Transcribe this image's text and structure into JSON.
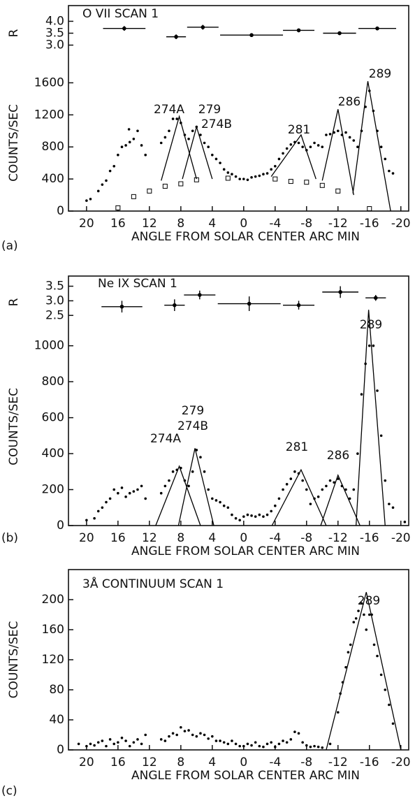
{
  "chart_data": [
    {
      "type": "scatter",
      "title": "O VII SCAN 1",
      "ylabel": "R",
      "xlim": [
        22.3,
        -21
      ],
      "ylim": [
        2.4,
        4.6
      ],
      "yticks": [
        {
          "value": 3,
          "label": "3.0"
        },
        3.5,
        {
          "value": 4,
          "label": "4.0"
        }
      ],
      "series": [
        {
          "marker": "errorbar",
          "color": "#000000",
          "x": [
            15.2,
            8.6,
            5.2,
            -1,
            -7,
            -12.2,
            -17
          ],
          "values": [
            3.7,
            3.35,
            3.75,
            3.42,
            3.62,
            3.5,
            3.7
          ],
          "xerr": [
            2.7,
            1.25,
            2,
            4,
            2,
            2.1,
            2.4
          ],
          "yerr": [
            0.1,
            0.1,
            0.1,
            0.08,
            0.08,
            0.08,
            0.08
          ]
        }
      ]
    },
    {
      "type": "scatter",
      "ylabel": "COUNTS/SEC",
      "xlabel": "ANGLE FROM SOLAR CENTER ARC MIN",
      "panel_label": "(a)",
      "xlim": [
        22.3,
        -21
      ],
      "ylim": [
        0,
        1700
      ],
      "yticks": [
        0,
        400,
        800,
        1200,
        1600
      ],
      "xticks": [
        20,
        16,
        12,
        8,
        4,
        0,
        -4,
        -8,
        -12,
        -16,
        -20
      ],
      "annotations": [
        "274A",
        "279",
        "274B",
        "281",
        "286",
        "289"
      ],
      "series": [
        {
          "marker": "dot",
          "color": "#000000",
          "x": [
            20,
            19.5,
            18.5,
            18,
            17.5,
            17,
            16.5,
            16,
            15.5,
            15,
            14.6,
            14.5,
            14,
            13.5,
            13,
            12.5,
            10.5,
            10,
            9.5,
            9,
            8.5,
            8,
            7.5,
            7,
            6.5,
            6,
            5.5,
            5,
            4.5,
            4,
            3.5,
            3,
            2.5,
            2,
            1.5,
            1,
            0.5,
            0,
            -0.5,
            -1,
            -1.5,
            -2,
            -2.5,
            -3,
            -3.5,
            -4,
            -4.5,
            -5,
            -5.5,
            -6,
            -6.5,
            -7,
            -7.5,
            -8,
            -8.5,
            -9,
            -9.5,
            -10,
            -10.5,
            -11,
            -11.5,
            -12,
            -12.5,
            -13,
            -13.5,
            -14,
            -14.5,
            -15,
            -15.5,
            -16,
            -16.5,
            -17,
            -17.5,
            -18,
            -18.5,
            -19
          ],
          "values": [
            130,
            150,
            250,
            330,
            380,
            500,
            560,
            700,
            800,
            820,
            1020,
            860,
            900,
            1000,
            820,
            700,
            850,
            920,
            1000,
            1150,
            1150,
            1100,
            950,
            900,
            1000,
            1050,
            950,
            850,
            800,
            700,
            650,
            600,
            520,
            480,
            460,
            430,
            400,
            400,
            390,
            420,
            430,
            440,
            460,
            470,
            520,
            560,
            650,
            720,
            780,
            830,
            860,
            850,
            800,
            760,
            800,
            850,
            820,
            800,
            950,
            960,
            980,
            1000,
            950,
            980,
            920,
            880,
            800,
            1000,
            1300,
            1500,
            1250,
            1000,
            800,
            650,
            500,
            470
          ]
        },
        {
          "marker": "square",
          "color": "#000000",
          "x": [
            16,
            14,
            12,
            10,
            8,
            6,
            2,
            -4,
            -6,
            -8,
            -10,
            -12,
            -16
          ],
          "values": [
            40,
            180,
            250,
            310,
            340,
            390,
            410,
            400,
            370,
            360,
            320,
            250,
            30
          ]
        },
        {
          "marker": "line",
          "color": "#000000",
          "x": [
            10.5,
            8.2,
            6,
            null,
            7.8,
            6,
            4,
            null,
            -3.5,
            -7.3,
            -9.2,
            null,
            -10,
            -12,
            -14,
            null,
            -13.9,
            -15.8,
            -18.7
          ],
          "values": [
            380,
            1180,
            400,
            null,
            400,
            1050,
            400,
            null,
            430,
            950,
            400,
            null,
            380,
            1270,
            200,
            null,
            220,
            1620,
            0
          ]
        }
      ]
    },
    {
      "type": "scatter",
      "title": "Ne IX SCAN 1",
      "ylabel": "R",
      "xlim": [
        22.3,
        -21
      ],
      "ylim": [
        2.1,
        3.8
      ],
      "yticks": [
        2.5,
        {
          "value": 3,
          "label": "3.0"
        },
        3.5
      ],
      "series": [
        {
          "marker": "errorbar",
          "color": "#000000",
          "x": [
            15.5,
            8.8,
            5.6,
            -0.7,
            -7,
            -12.3,
            -16.8
          ],
          "values": [
            2.8,
            2.85,
            3.2,
            2.9,
            2.85,
            3.3,
            3.1
          ],
          "xerr": [
            2.6,
            1.3,
            2,
            4,
            2,
            2.3,
            1.3
          ],
          "yerr": [
            0.2,
            0.2,
            0.15,
            0.25,
            0.15,
            0.2,
            0.1
          ]
        }
      ]
    },
    {
      "type": "scatter",
      "ylabel": "COUNTS/SEC",
      "xlabel": "ANGLE FROM SOLAR CENTER ARC MIN",
      "panel_label": "(b)",
      "xlim": [
        22.3,
        -21
      ],
      "ylim": [
        0,
        1100
      ],
      "yticks": [
        0,
        200,
        400,
        600,
        800,
        1000
      ],
      "xticks": [
        20,
        16,
        12,
        8,
        4,
        0,
        -4,
        -8,
        -12,
        -16,
        -20
      ],
      "annotations": [
        "274A",
        "279",
        "274B",
        "281",
        "286",
        "289"
      ],
      "series": [
        {
          "marker": "dot",
          "color": "#000000",
          "x": [
            20,
            19,
            18.5,
            18,
            17.5,
            17,
            16.5,
            16,
            15.5,
            15,
            14.5,
            14,
            13.5,
            13,
            12.5,
            10.5,
            10,
            9.5,
            9,
            8.5,
            8,
            7.5,
            7,
            6.5,
            6,
            5.5,
            5,
            4.5,
            4,
            3.5,
            3,
            2.5,
            2,
            1.5,
            1,
            0.5,
            0,
            -0.5,
            -1,
            -1.5,
            -2,
            -2.5,
            -3,
            -3.5,
            -4,
            -4.5,
            -5,
            -5.5,
            -6,
            -6.5,
            -7,
            -7.5,
            -8,
            -8.5,
            -9,
            -9.5,
            -10,
            -10.5,
            -11,
            -11.5,
            -12,
            -12.5,
            -13,
            -13.5,
            -14,
            -14.5,
            -15,
            -15.5,
            -16,
            -16.5,
            -17,
            -17.5,
            -18,
            -18.5,
            -19,
            -20.5
          ],
          "values": [
            30,
            40,
            80,
            100,
            130,
            150,
            200,
            180,
            210,
            160,
            180,
            190,
            200,
            220,
            150,
            180,
            220,
            250,
            300,
            310,
            320,
            250,
            220,
            300,
            420,
            380,
            300,
            200,
            150,
            140,
            130,
            110,
            100,
            60,
            40,
            30,
            50,
            60,
            55,
            50,
            60,
            50,
            60,
            80,
            110,
            150,
            200,
            230,
            260,
            300,
            290,
            250,
            200,
            120,
            150,
            160,
            200,
            220,
            250,
            240,
            260,
            220,
            200,
            150,
            200,
            400,
            730,
            900,
            1000,
            1000,
            750,
            500,
            250,
            120,
            100,
            20
          ]
        },
        {
          "marker": "line",
          "color": "#000000",
          "x": [
            11.2,
            8.2,
            5.5,
            null,
            8.3,
            6.2,
            3.8,
            null,
            -3.6,
            -7.3,
            -10.5,
            null,
            -9.8,
            -12,
            -14.8,
            null,
            -14.3,
            -15.9,
            -18
          ],
          "values": [
            0,
            330,
            0,
            null,
            0,
            430,
            0,
            null,
            0,
            310,
            0,
            null,
            0,
            280,
            0,
            null,
            0,
            1200,
            0
          ]
        }
      ]
    },
    {
      "type": "scatter",
      "title": "3Å CONTINUUM SCAN 1",
      "ylabel": "COUNTS/SEC",
      "xlabel": "ANGLE FROM SOLAR CENTER ARC MIN",
      "panel_label": "(c)",
      "xlim": [
        22.3,
        -21
      ],
      "ylim": [
        0,
        240
      ],
      "yticks": [
        0,
        40,
        80,
        120,
        160,
        200
      ],
      "xticks": [
        20,
        16,
        12,
        8,
        4,
        0,
        -4,
        -8,
        -12,
        -16,
        -20
      ],
      "annotations": [
        "289"
      ],
      "series": [
        {
          "marker": "dot",
          "color": "#000000",
          "x": [
            21,
            20,
            19.5,
            19,
            18.5,
            18,
            17.5,
            17,
            16.5,
            16,
            15.5,
            15,
            14.5,
            14,
            13.5,
            13,
            12.5,
            10.5,
            10,
            9.5,
            9,
            8.5,
            8,
            7.5,
            7,
            6.5,
            6,
            5.5,
            5,
            4.5,
            4,
            3.5,
            3,
            2.5,
            2,
            1.5,
            1,
            0.5,
            0,
            -0.5,
            -1,
            -1.5,
            -2,
            -2.5,
            -3,
            -3.5,
            -4,
            -4.5,
            -5,
            -5.5,
            -6,
            -6.5,
            -7,
            -7.5,
            -8,
            -8.5,
            -9,
            -9.5,
            -10,
            -11,
            -12,
            -12.3,
            -12.6,
            -13,
            -13.3,
            -13.6,
            -14,
            -14.3,
            -14.6,
            -15,
            -15.3,
            -15.6,
            -16,
            -16.3,
            -16.6,
            -17,
            -17.5,
            -18,
            -18.5,
            -19
          ],
          "values": [
            8,
            5,
            8,
            6,
            10,
            12,
            5,
            14,
            8,
            10,
            16,
            12,
            5,
            10,
            14,
            8,
            20,
            14,
            12,
            18,
            22,
            20,
            30,
            25,
            26,
            20,
            18,
            22,
            20,
            15,
            18,
            12,
            12,
            10,
            8,
            12,
            8,
            5,
            5,
            8,
            6,
            10,
            5,
            4,
            8,
            10,
            4,
            8,
            12,
            10,
            14,
            24,
            22,
            10,
            6,
            4,
            5,
            4,
            3,
            8,
            50,
            75,
            90,
            110,
            130,
            140,
            170,
            175,
            185,
            195,
            180,
            160,
            180,
            180,
            140,
            125,
            100,
            80,
            60,
            35
          ]
        },
        {
          "marker": "line",
          "color": "#000000",
          "x": [
            -10.5,
            -15.6,
            -20
          ],
          "values": [
            0,
            210,
            0
          ]
        }
      ]
    }
  ]
}
